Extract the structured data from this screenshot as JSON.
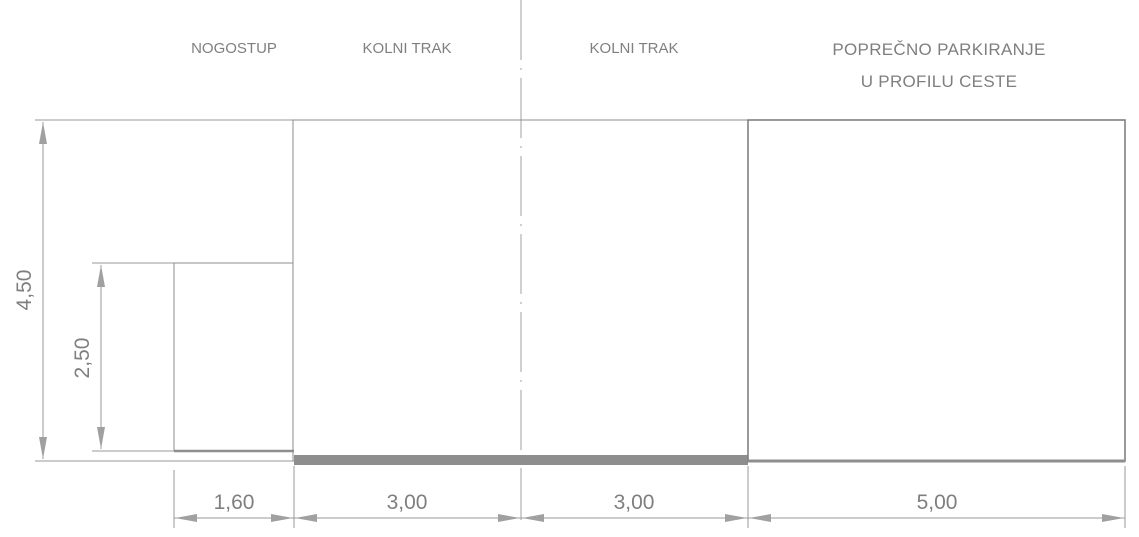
{
  "labels": {
    "sidewalk": "NOGOSTUP",
    "lane_left": "KOLNI TRAK",
    "lane_right": "KOLNI TRAK",
    "parking_line1": "POPREČNO PARKIRANJE",
    "parking_line2": "U PROFILU CESTE"
  },
  "dimensions": {
    "total_height": "4,50",
    "sidewalk_height": "2,50",
    "sidewalk_width": "1,60",
    "lane_left_width": "3,00",
    "lane_right_width": "3,00",
    "parking_width": "5,00"
  },
  "colors": {
    "line": "#8c8c8c",
    "text": "#7f7f7f",
    "road_surface": "#8e8e8e"
  }
}
